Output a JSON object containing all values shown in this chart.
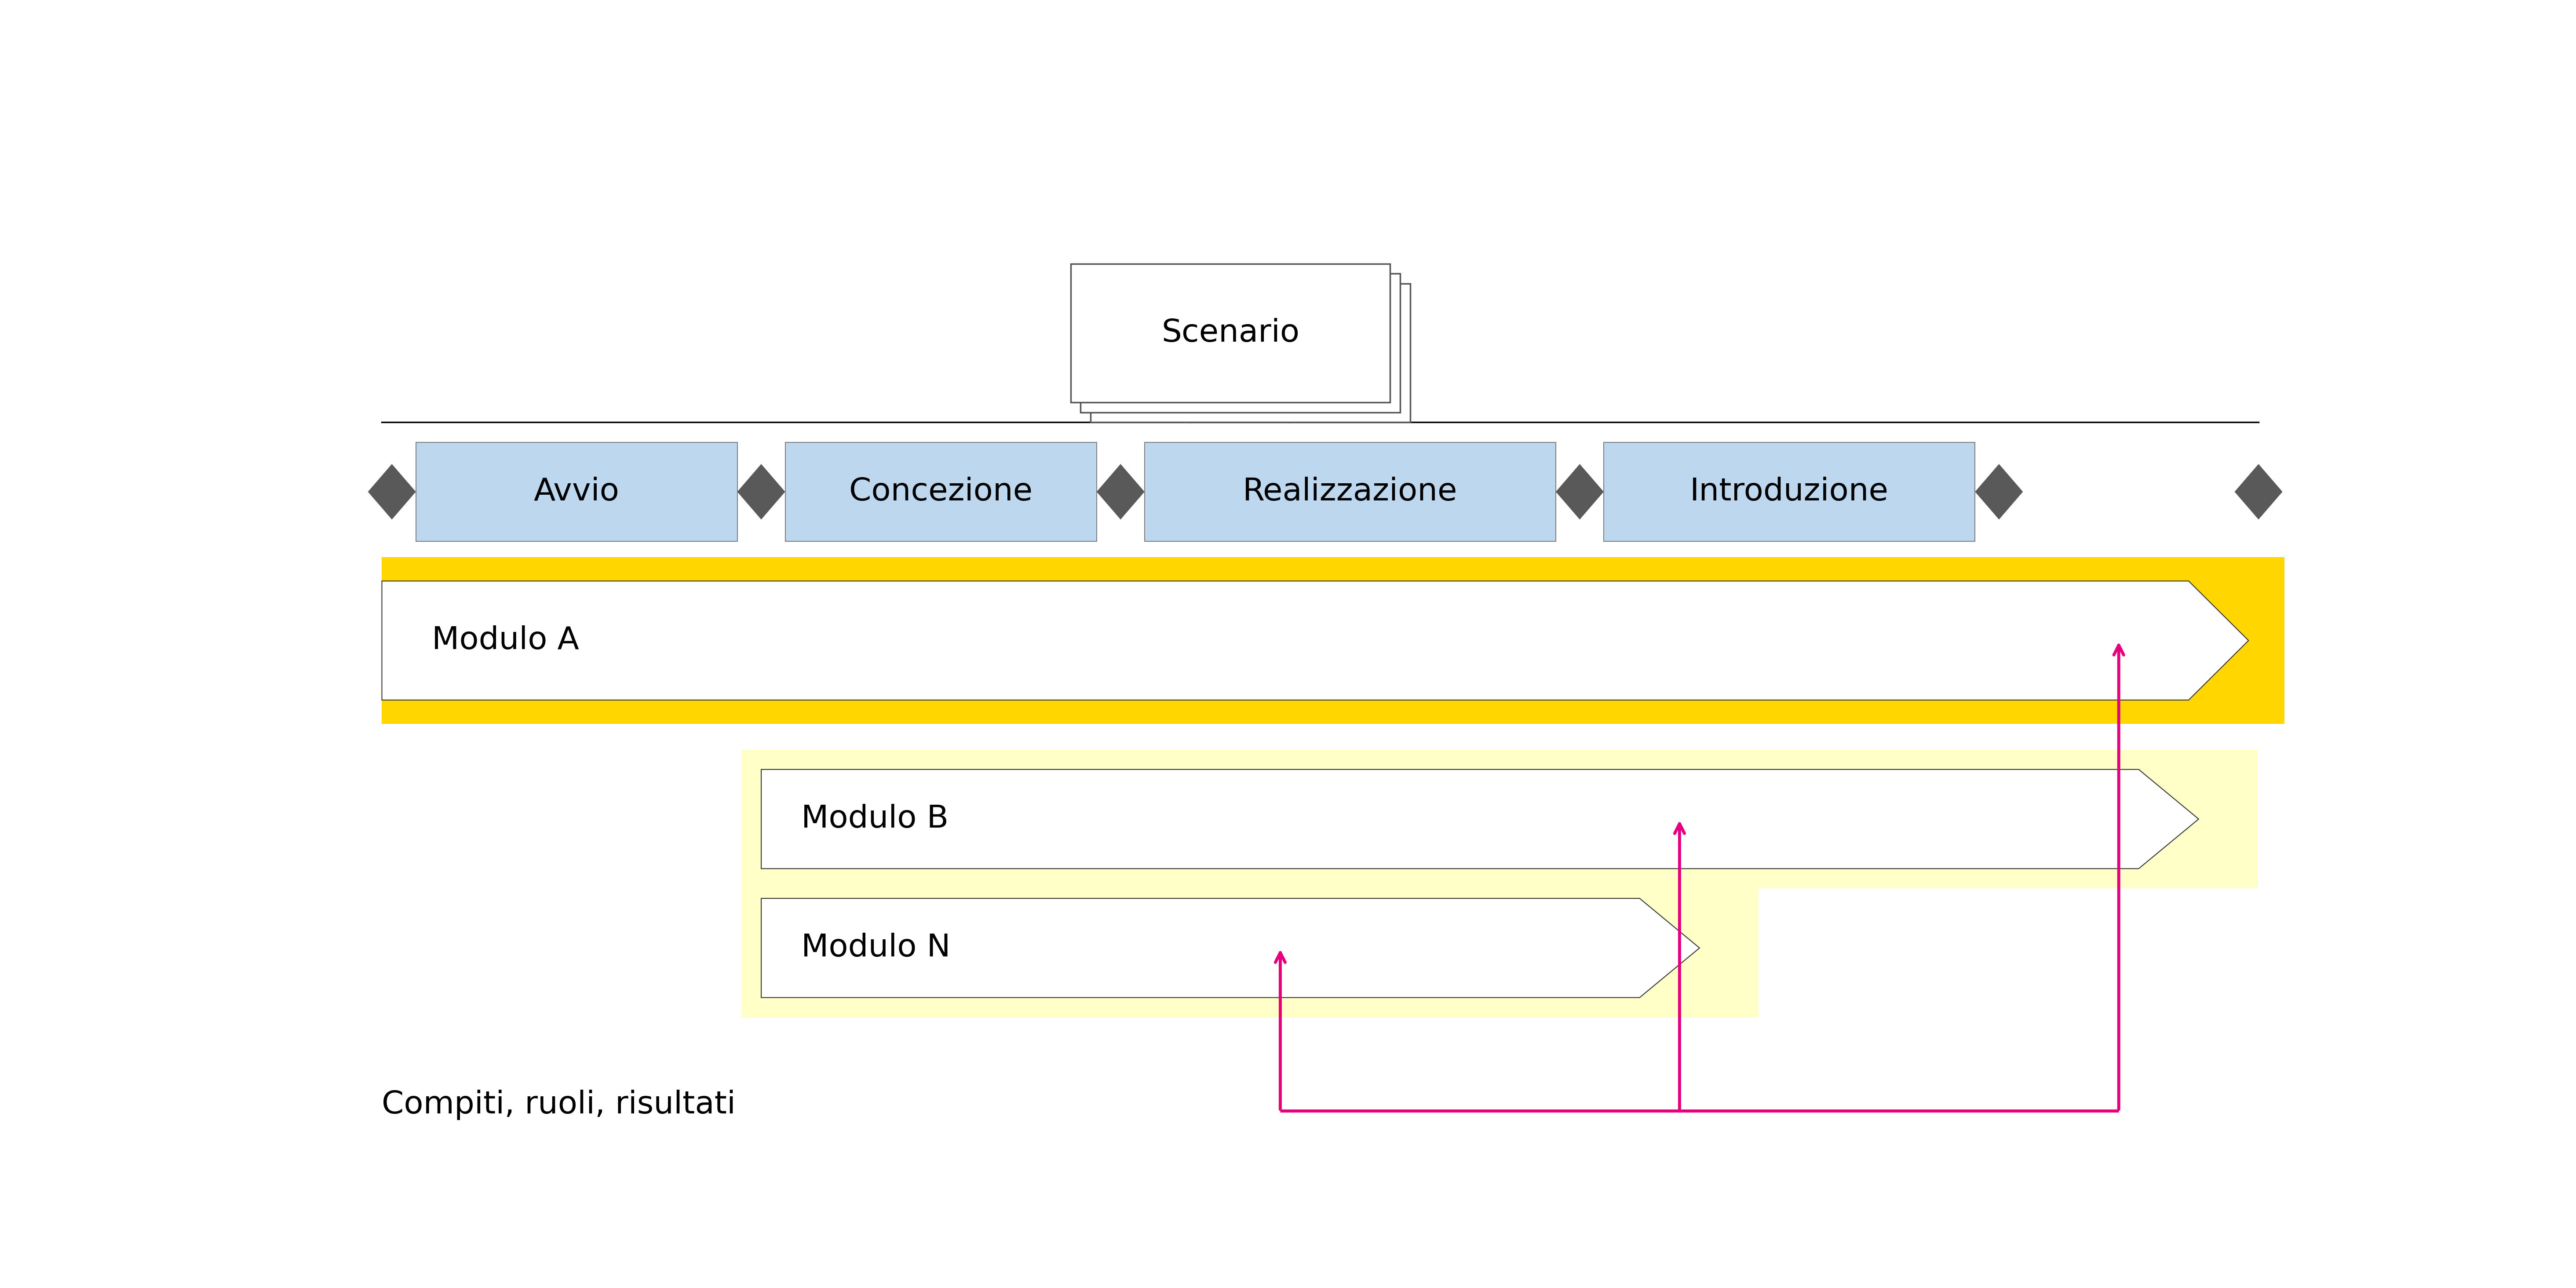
{
  "bg_color": "#ffffff",
  "phases": [
    "Avvio",
    "Concezione",
    "Realizzazione",
    "Introduzione"
  ],
  "phase_color": "#bdd7ee",
  "phase_border": "#7f7f7f",
  "diamond_color": "#595959",
  "scenario_label": "Scenario",
  "modulo_a_label": "Modulo A",
  "modulo_b_label": "Modulo B",
  "modulo_n_label": "Modulo N",
  "compiti_label": "Compiti, ruoli, risultati",
  "arrow_color": "#e6007e",
  "yellow_border": "#ffd600",
  "modulo_b_bg": "#ffffcc",
  "modulo_n_bg": "#ffffcc",
  "font_size_large": 52,
  "font_size_medium": 46,
  "font_size_small": 42
}
